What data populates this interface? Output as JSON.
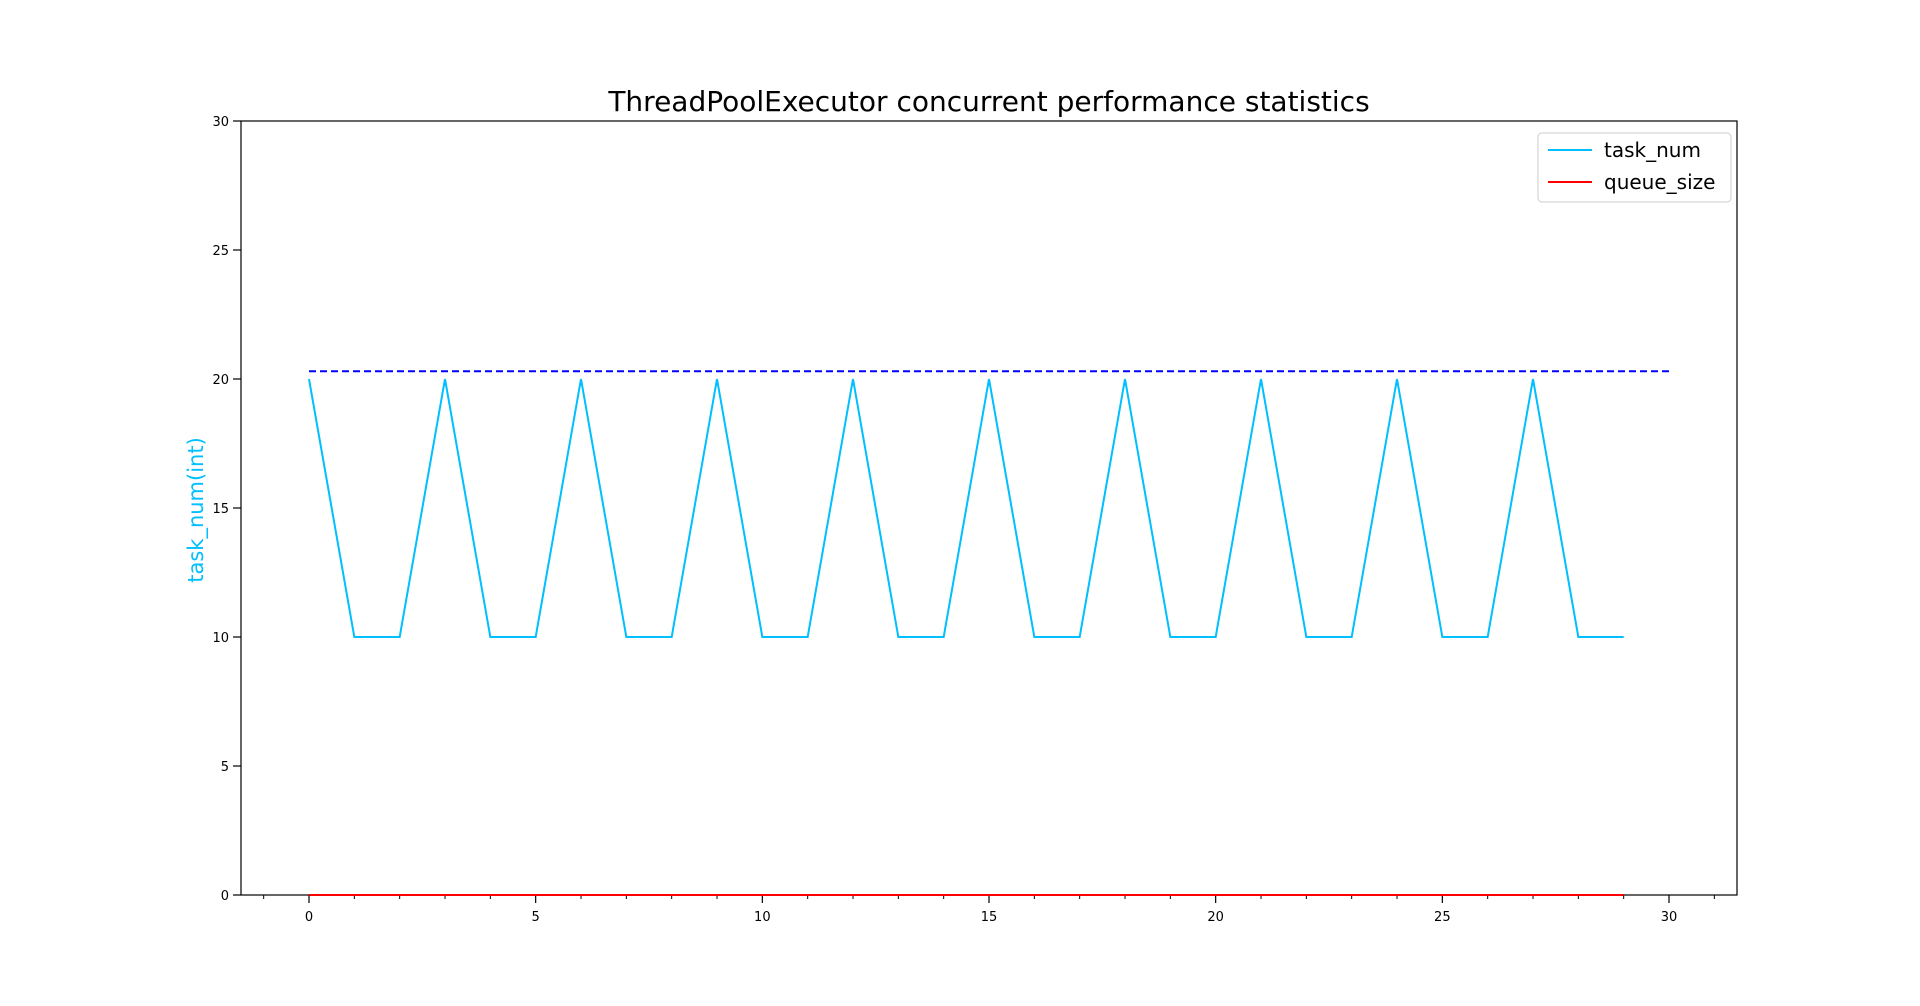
{
  "chart_data": {
    "type": "line",
    "title": "ThreadPoolExecutor concurrent performance statistics",
    "xlabel": "",
    "ylabel": "task_num(int)",
    "xlim": [
      -1.5,
      31.5
    ],
    "ylim": [
      0,
      30
    ],
    "x_ticks": [
      0,
      5,
      10,
      15,
      20,
      25,
      30
    ],
    "x_minor_ticks": [
      -1,
      1,
      2,
      3,
      4,
      6,
      7,
      8,
      9,
      11,
      12,
      13,
      14,
      16,
      17,
      18,
      19,
      21,
      22,
      23,
      24,
      26,
      27,
      28,
      29,
      31
    ],
    "y_ticks": [
      0,
      5,
      10,
      15,
      20,
      25,
      30
    ],
    "grid": false,
    "legend_position": "top-right",
    "series": [
      {
        "name": "task_num",
        "color": "#00bfff",
        "style": "solid",
        "x": [
          0,
          1,
          2,
          3,
          4,
          5,
          6,
          7,
          8,
          9,
          10,
          11,
          12,
          13,
          14,
          15,
          16,
          17,
          18,
          19,
          20,
          21,
          22,
          23,
          24,
          25,
          26,
          27,
          28,
          29
        ],
        "values": [
          20,
          10,
          10,
          20,
          10,
          10,
          20,
          10,
          10,
          20,
          10,
          10,
          20,
          10,
          10,
          20,
          10,
          10,
          20,
          10,
          10,
          20,
          10,
          10,
          20,
          10,
          10,
          20,
          10,
          10
        ]
      },
      {
        "name": "queue_size",
        "color": "#ff0000",
        "style": "solid",
        "x": [
          0,
          1,
          2,
          3,
          4,
          5,
          6,
          7,
          8,
          9,
          10,
          11,
          12,
          13,
          14,
          15,
          16,
          17,
          18,
          19,
          20,
          21,
          22,
          23,
          24,
          25,
          26,
          27,
          28,
          29
        ],
        "values": [
          0,
          0,
          0,
          0,
          0,
          0,
          0,
          0,
          0,
          0,
          0,
          0,
          0,
          0,
          0,
          0,
          0,
          0,
          0,
          0,
          0,
          0,
          0,
          0,
          0,
          0,
          0,
          0,
          0,
          0
        ]
      }
    ],
    "reference_lines": [
      {
        "color": "#0000ff",
        "style": "dashed",
        "x": [
          0,
          30
        ],
        "values": [
          20.3,
          20.3
        ]
      }
    ]
  }
}
